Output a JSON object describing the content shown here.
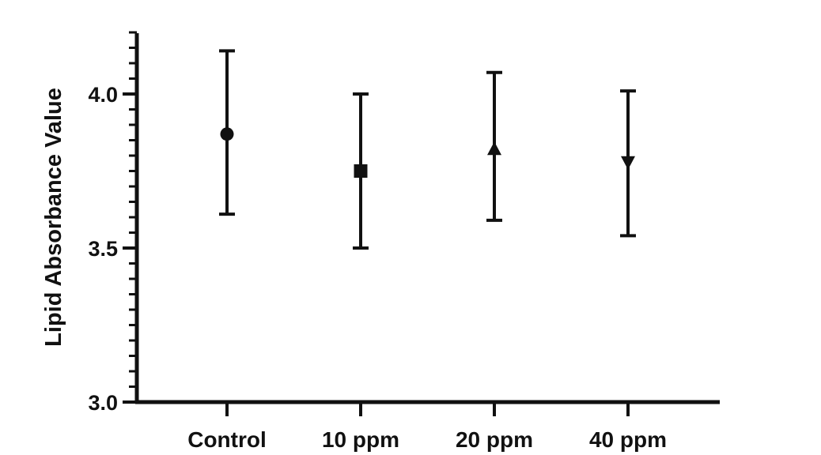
{
  "chart_data": {
    "type": "scatter",
    "title": "",
    "xlabel": "",
    "ylabel": "Lipid Absorbance Value",
    "ylim": [
      3.0,
      4.2
    ],
    "yticks": [
      "3.0",
      "3.5",
      "4.0"
    ],
    "yminor_step": 0.05,
    "grid": false,
    "legend": "none",
    "colors": {
      "marks": "#111111",
      "background": "#ffffff"
    },
    "categories": [
      "Control",
      "10 ppm",
      "20 ppm",
      "40 ppm"
    ],
    "markers": [
      "circle",
      "square",
      "triangle-up",
      "triangle-down"
    ],
    "values": [
      3.87,
      3.75,
      3.82,
      3.78
    ],
    "error_upper": [
      4.14,
      4.0,
      4.07,
      4.01
    ],
    "error_lower": [
      3.61,
      3.5,
      3.59,
      3.54
    ]
  }
}
